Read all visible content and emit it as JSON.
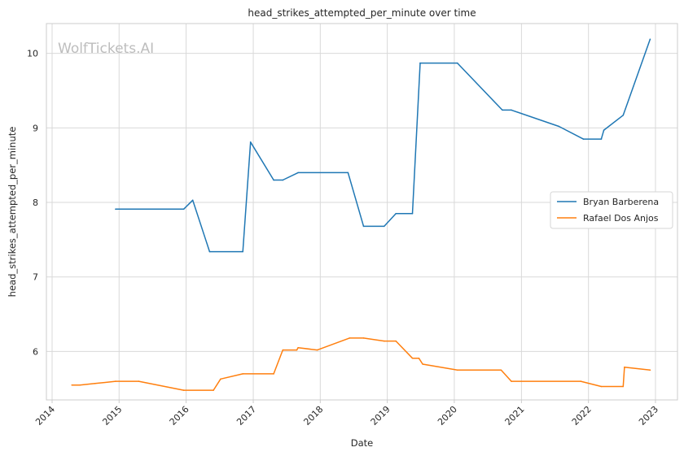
{
  "chart_data": {
    "type": "line",
    "title": "head_strikes_attempted_per_minute over time",
    "xlabel": "Date",
    "ylabel": "head_strikes_attempted_per_minute",
    "watermark": "WolfTickets.AI",
    "x_ticks": [
      "2014",
      "2015",
      "2016",
      "2017",
      "2018",
      "2019",
      "2020",
      "2021",
      "2022",
      "2023"
    ],
    "y_ticks": [
      "6",
      "7",
      "8",
      "9",
      "10"
    ],
    "xlim": [
      "2013-12-01",
      "2023-05-01"
    ],
    "ylim": [
      5.35,
      10.4
    ],
    "grid": true,
    "legend_position": "center-right",
    "series": [
      {
        "name": "Bryan Barberena",
        "color": "#1f77b4",
        "points": [
          [
            "2014-12-13",
            7.91
          ],
          [
            "2015-12-19",
            7.91
          ],
          [
            "2016-02-06",
            8.03
          ],
          [
            "2016-05-08",
            7.34
          ],
          [
            "2016-11-05",
            7.34
          ],
          [
            "2016-12-17",
            8.81
          ],
          [
            "2017-04-22",
            8.3
          ],
          [
            "2017-06-11",
            8.3
          ],
          [
            "2017-09-02",
            8.4
          ],
          [
            "2018-06-01",
            8.4
          ],
          [
            "2018-08-25",
            7.68
          ],
          [
            "2018-12-15",
            7.68
          ],
          [
            "2019-02-17",
            7.85
          ],
          [
            "2019-05-18",
            7.85
          ],
          [
            "2019-06-29",
            9.87
          ],
          [
            "2020-01-18",
            9.87
          ],
          [
            "2020-09-19",
            9.24
          ],
          [
            "2020-11-07",
            9.24
          ],
          [
            "2021-07-24",
            9.02
          ],
          [
            "2021-12-04",
            8.85
          ],
          [
            "2022-03-12",
            8.85
          ],
          [
            "2022-03-26",
            8.97
          ],
          [
            "2022-07-09",
            9.17
          ],
          [
            "2022-12-03",
            10.19
          ]
        ]
      },
      {
        "name": "Rafael Dos Anjos",
        "color": "#ff7f0e",
        "points": [
          [
            "2014-04-19",
            5.55
          ],
          [
            "2014-06-01",
            5.55
          ],
          [
            "2014-08-23",
            5.57
          ],
          [
            "2014-12-13",
            5.6
          ],
          [
            "2015-04-18",
            5.6
          ],
          [
            "2015-12-19",
            5.48
          ],
          [
            "2016-05-29",
            5.48
          ],
          [
            "2016-07-07",
            5.63
          ],
          [
            "2016-11-05",
            5.7
          ],
          [
            "2017-04-22",
            5.7
          ],
          [
            "2017-06-11",
            6.02
          ],
          [
            "2017-08-26",
            6.02
          ],
          [
            "2017-09-02",
            6.05
          ],
          [
            "2017-12-16",
            6.02
          ],
          [
            "2018-06-09",
            6.18
          ],
          [
            "2018-08-25",
            6.18
          ],
          [
            "2018-12-15",
            6.14
          ],
          [
            "2019-02-17",
            6.14
          ],
          [
            "2019-05-18",
            5.91
          ],
          [
            "2019-06-22",
            5.91
          ],
          [
            "2019-07-13",
            5.83
          ],
          [
            "2020-01-18",
            5.75
          ],
          [
            "2020-09-12",
            5.75
          ],
          [
            "2020-11-07",
            5.6
          ],
          [
            "2021-11-20",
            5.6
          ],
          [
            "2022-03-12",
            5.53
          ],
          [
            "2022-07-09",
            5.53
          ],
          [
            "2022-07-16",
            5.79
          ],
          [
            "2022-12-03",
            5.75
          ]
        ]
      }
    ]
  }
}
